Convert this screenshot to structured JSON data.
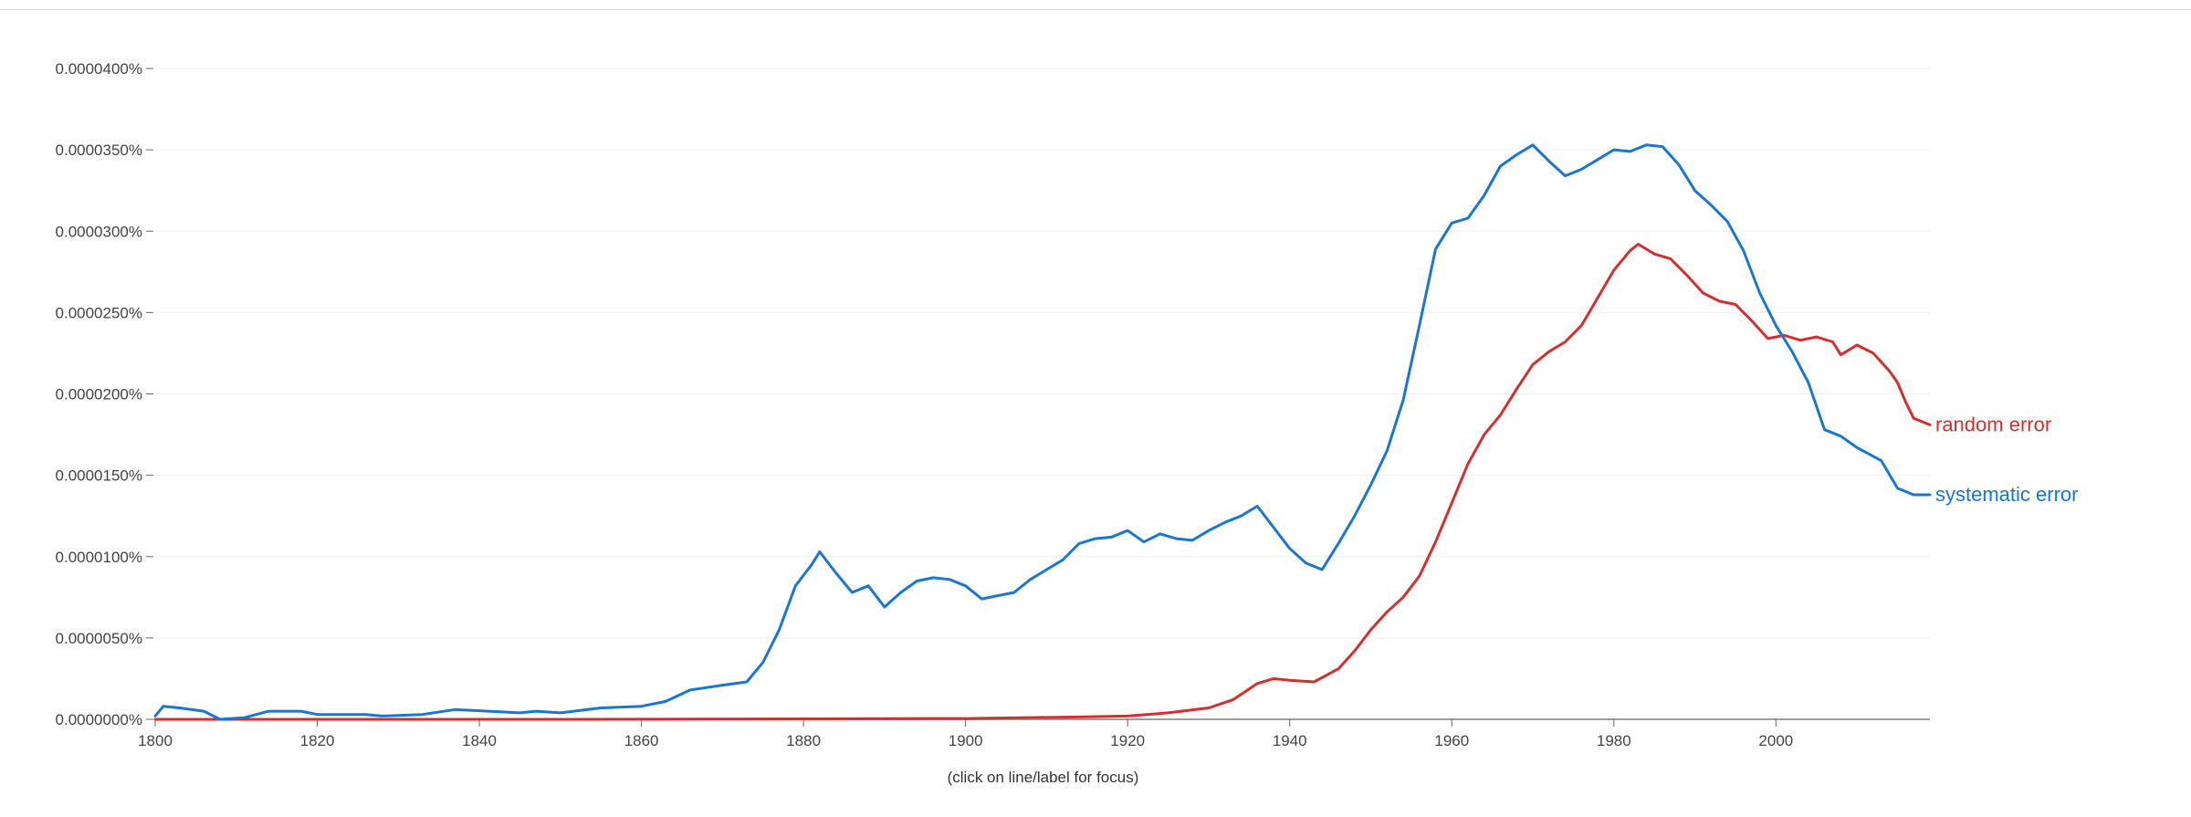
{
  "footnote": "(click on line/label for focus)",
  "colors": {
    "random error": "#d32f2f",
    "systematic error": "#1976d2"
  },
  "chart_data": {
    "type": "line",
    "title": "",
    "xlabel": "",
    "ylabel": "",
    "xlim": [
      1800,
      2019
    ],
    "ylim": [
      0,
      4e-05
    ],
    "x_ticks": [
      1800,
      1820,
      1840,
      1860,
      1880,
      1900,
      1920,
      1940,
      1960,
      1980,
      2000
    ],
    "y_ticks": [
      {
        "value": 0,
        "label": "0.0000000%"
      },
      {
        "value": 5e-06,
        "label": "0.0000050%"
      },
      {
        "value": 1e-05,
        "label": "0.0000100%"
      },
      {
        "value": 1.5e-05,
        "label": "0.0000150%"
      },
      {
        "value": 2e-05,
        "label": "0.0000200%"
      },
      {
        "value": 2.5e-05,
        "label": "0.0000250%"
      },
      {
        "value": 3e-05,
        "label": "0.0000300%"
      },
      {
        "value": 3.5e-05,
        "label": "0.0000350%"
      },
      {
        "value": 4e-05,
        "label": "0.0000400%"
      }
    ],
    "grid": true,
    "legend": "inline-right",
    "series": [
      {
        "name": "random error",
        "color": "#d32f2f",
        "points": [
          [
            1800,
            0
          ],
          [
            1850,
            0
          ],
          [
            1900,
            5e-08
          ],
          [
            1915,
            1.5e-07
          ],
          [
            1920,
            2e-07
          ],
          [
            1925,
            4e-07
          ],
          [
            1930,
            7e-07
          ],
          [
            1933,
            1.2e-06
          ],
          [
            1936,
            2.2e-06
          ],
          [
            1938,
            2.5e-06
          ],
          [
            1940,
            2.4e-06
          ],
          [
            1943,
            2.3e-06
          ],
          [
            1946,
            3.1e-06
          ],
          [
            1948,
            4.2e-06
          ],
          [
            1950,
            5.5e-06
          ],
          [
            1952,
            6.6e-06
          ],
          [
            1954,
            7.5e-06
          ],
          [
            1956,
            8.8e-06
          ],
          [
            1958,
            1.09e-05
          ],
          [
            1960,
            1.33e-05
          ],
          [
            1962,
            1.57e-05
          ],
          [
            1964,
            1.75e-05
          ],
          [
            1966,
            1.87e-05
          ],
          [
            1968,
            2.03e-05
          ],
          [
            1970,
            2.18e-05
          ],
          [
            1972,
            2.26e-05
          ],
          [
            1974,
            2.32e-05
          ],
          [
            1976,
            2.42e-05
          ],
          [
            1978,
            2.59e-05
          ],
          [
            1980,
            2.76e-05
          ],
          [
            1982,
            2.88e-05
          ],
          [
            1983,
            2.92e-05
          ],
          [
            1985,
            2.86e-05
          ],
          [
            1987,
            2.83e-05
          ],
          [
            1989,
            2.73e-05
          ],
          [
            1991,
            2.62e-05
          ],
          [
            1993,
            2.57e-05
          ],
          [
            1995,
            2.55e-05
          ],
          [
            1997,
            2.45e-05
          ],
          [
            1999,
            2.34e-05
          ],
          [
            2001,
            2.36e-05
          ],
          [
            2003,
            2.33e-05
          ],
          [
            2005,
            2.35e-05
          ],
          [
            2007,
            2.32e-05
          ],
          [
            2008,
            2.24e-05
          ],
          [
            2010,
            2.3e-05
          ],
          [
            2012,
            2.25e-05
          ],
          [
            2014,
            2.14e-05
          ],
          [
            2015,
            2.07e-05
          ],
          [
            2016,
            1.95e-05
          ],
          [
            2017,
            1.85e-05
          ],
          [
            2019,
            1.81e-05
          ]
        ]
      },
      {
        "name": "systematic error",
        "color": "#1976d2",
        "points": [
          [
            1800,
            2e-07
          ],
          [
            1801,
            8e-07
          ],
          [
            1803,
            7e-07
          ],
          [
            1806,
            5e-07
          ],
          [
            1808,
            0
          ],
          [
            1811,
            1e-07
          ],
          [
            1814,
            5e-07
          ],
          [
            1818,
            5e-07
          ],
          [
            1820,
            3e-07
          ],
          [
            1826,
            3e-07
          ],
          [
            1828,
            2e-07
          ],
          [
            1833,
            3e-07
          ],
          [
            1837,
            6e-07
          ],
          [
            1845,
            4e-07
          ],
          [
            1847,
            5e-07
          ],
          [
            1850,
            4e-07
          ],
          [
            1855,
            7e-07
          ],
          [
            1860,
            8e-07
          ],
          [
            1863,
            1.1e-06
          ],
          [
            1866,
            1.8e-06
          ],
          [
            1870,
            2.1e-06
          ],
          [
            1873,
            2.3e-06
          ],
          [
            1875,
            3.5e-06
          ],
          [
            1877,
            5.5e-06
          ],
          [
            1879,
            8.2e-06
          ],
          [
            1881,
            9.5e-06
          ],
          [
            1882,
            1.03e-05
          ],
          [
            1884,
            9e-06
          ],
          [
            1886,
            7.8e-06
          ],
          [
            1888,
            8.2e-06
          ],
          [
            1890,
            6.9e-06
          ],
          [
            1892,
            7.8e-06
          ],
          [
            1894,
            8.5e-06
          ],
          [
            1896,
            8.7e-06
          ],
          [
            1898,
            8.6e-06
          ],
          [
            1900,
            8.2e-06
          ],
          [
            1902,
            7.4e-06
          ],
          [
            1904,
            7.6e-06
          ],
          [
            1906,
            7.8e-06
          ],
          [
            1908,
            8.6e-06
          ],
          [
            1910,
            9.2e-06
          ],
          [
            1912,
            9.8e-06
          ],
          [
            1914,
            1.08e-05
          ],
          [
            1916,
            1.11e-05
          ],
          [
            1918,
            1.12e-05
          ],
          [
            1920,
            1.16e-05
          ],
          [
            1922,
            1.09e-05
          ],
          [
            1924,
            1.14e-05
          ],
          [
            1926,
            1.11e-05
          ],
          [
            1928,
            1.1e-05
          ],
          [
            1930,
            1.16e-05
          ],
          [
            1932,
            1.21e-05
          ],
          [
            1934,
            1.25e-05
          ],
          [
            1936,
            1.31e-05
          ],
          [
            1938,
            1.18e-05
          ],
          [
            1940,
            1.05e-05
          ],
          [
            1942,
            9.6e-06
          ],
          [
            1944,
            9.2e-06
          ],
          [
            1946,
            1.08e-05
          ],
          [
            1948,
            1.25e-05
          ],
          [
            1950,
            1.44e-05
          ],
          [
            1952,
            1.65e-05
          ],
          [
            1954,
            1.96e-05
          ],
          [
            1956,
            2.42e-05
          ],
          [
            1958,
            2.89e-05
          ],
          [
            1960,
            3.05e-05
          ],
          [
            1962,
            3.08e-05
          ],
          [
            1964,
            3.22e-05
          ],
          [
            1966,
            3.4e-05
          ],
          [
            1968,
            3.47e-05
          ],
          [
            1970,
            3.53e-05
          ],
          [
            1972,
            3.43e-05
          ],
          [
            1974,
            3.34e-05
          ],
          [
            1976,
            3.38e-05
          ],
          [
            1978,
            3.44e-05
          ],
          [
            1980,
            3.5e-05
          ],
          [
            1982,
            3.49e-05
          ],
          [
            1984,
            3.53e-05
          ],
          [
            1986,
            3.52e-05
          ],
          [
            1988,
            3.41e-05
          ],
          [
            1990,
            3.25e-05
          ],
          [
            1992,
            3.16e-05
          ],
          [
            1994,
            3.06e-05
          ],
          [
            1996,
            2.88e-05
          ],
          [
            1998,
            2.62e-05
          ],
          [
            2000,
            2.42e-05
          ],
          [
            2002,
            2.26e-05
          ],
          [
            2004,
            2.07e-05
          ],
          [
            2006,
            1.78e-05
          ],
          [
            2008,
            1.74e-05
          ],
          [
            2010,
            1.67e-05
          ],
          [
            2013,
            1.59e-05
          ],
          [
            2015,
            1.42e-05
          ],
          [
            2017,
            1.38e-05
          ],
          [
            2019,
            1.38e-05
          ]
        ]
      }
    ]
  }
}
